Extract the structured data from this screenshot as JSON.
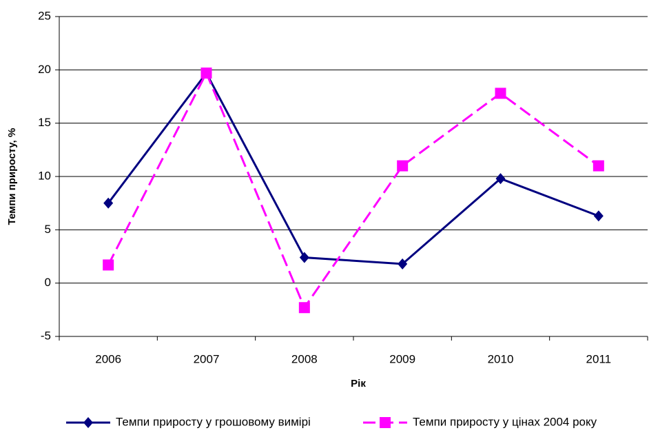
{
  "chart_data": {
    "type": "line",
    "x_label": "Рік",
    "y_label": "Темпи приросту, %",
    "categories": [
      "2006",
      "2007",
      "2008",
      "2009",
      "2010",
      "2011"
    ],
    "series": [
      {
        "name": "Темпи приросту у грошовому вимірі",
        "color": "#000080",
        "line_style": "solid",
        "marker": "diamond",
        "values": [
          7.5,
          19.7,
          2.4,
          1.8,
          9.8,
          6.3
        ]
      },
      {
        "name": "Темпи приросту у цінах 2004 року",
        "color": "#ff00ff",
        "line_style": "dashed",
        "marker": "square",
        "values": [
          1.7,
          19.7,
          -2.3,
          11.0,
          17.8,
          11.0
        ]
      }
    ],
    "ylim": [
      -5,
      25
    ],
    "yticks": [
      -5,
      0,
      5,
      10,
      15,
      20,
      25
    ],
    "grid": true,
    "legend": "bottom"
  }
}
